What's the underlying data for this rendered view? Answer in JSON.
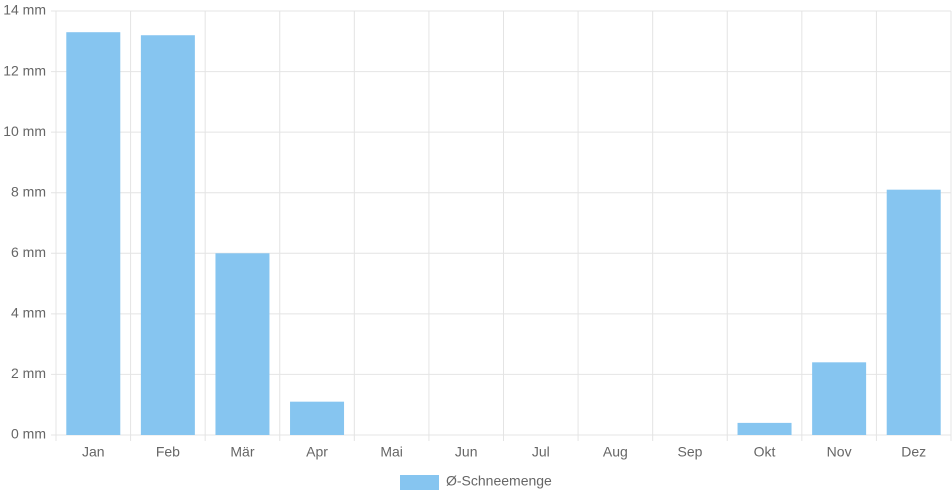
{
  "chart_data": {
    "type": "bar",
    "categories": [
      "Jan",
      "Feb",
      "Mär",
      "Apr",
      "Mai",
      "Jun",
      "Jul",
      "Aug",
      "Sep",
      "Okt",
      "Nov",
      "Dez"
    ],
    "series": [
      {
        "name": "Ø-Schneemenge",
        "color": "#86c5f0",
        "values": [
          13.3,
          13.2,
          6.0,
          1.1,
          0,
          0,
          0,
          0,
          0,
          0.4,
          2.4,
          8.1
        ]
      }
    ],
    "ylim": [
      0,
      14
    ],
    "yticks": [
      {
        "value": 0,
        "label": "0 mm"
      },
      {
        "value": 2,
        "label": "2 mm"
      },
      {
        "value": 4,
        "label": "4 mm"
      },
      {
        "value": 6,
        "label": "6 mm"
      },
      {
        "value": 8,
        "label": "8 mm"
      },
      {
        "value": 10,
        "label": "10 mm"
      },
      {
        "value": 12,
        "label": "12 mm"
      },
      {
        "value": 14,
        "label": "14 mm"
      }
    ],
    "grid": true,
    "legend": "bottom"
  }
}
